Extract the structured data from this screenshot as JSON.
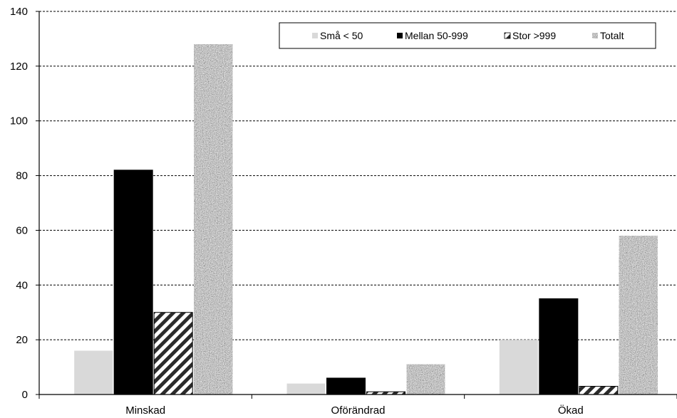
{
  "chart_data": {
    "type": "bar",
    "categories": [
      "Minskad",
      "Oförändrad",
      "Ökad"
    ],
    "series": [
      {
        "name": "Små < 50",
        "values": [
          16,
          4,
          20
        ]
      },
      {
        "name": "Mellan 50-999",
        "values": [
          82,
          6,
          35
        ]
      },
      {
        "name": "Stor >999",
        "values": [
          30,
          1,
          3
        ]
      },
      {
        "name": "Totalt",
        "values": [
          128,
          11,
          58
        ]
      }
    ],
    "ylim": [
      0,
      140
    ],
    "yticks": [
      0,
      20,
      40,
      60,
      80,
      100,
      120,
      140
    ],
    "grid": true,
    "legend_position": "top-right",
    "colors": {
      "small": "#d9d9d9",
      "medium": "#000000",
      "large": "#333333",
      "total": "#8a8a8a",
      "grid": "#000000"
    }
  }
}
